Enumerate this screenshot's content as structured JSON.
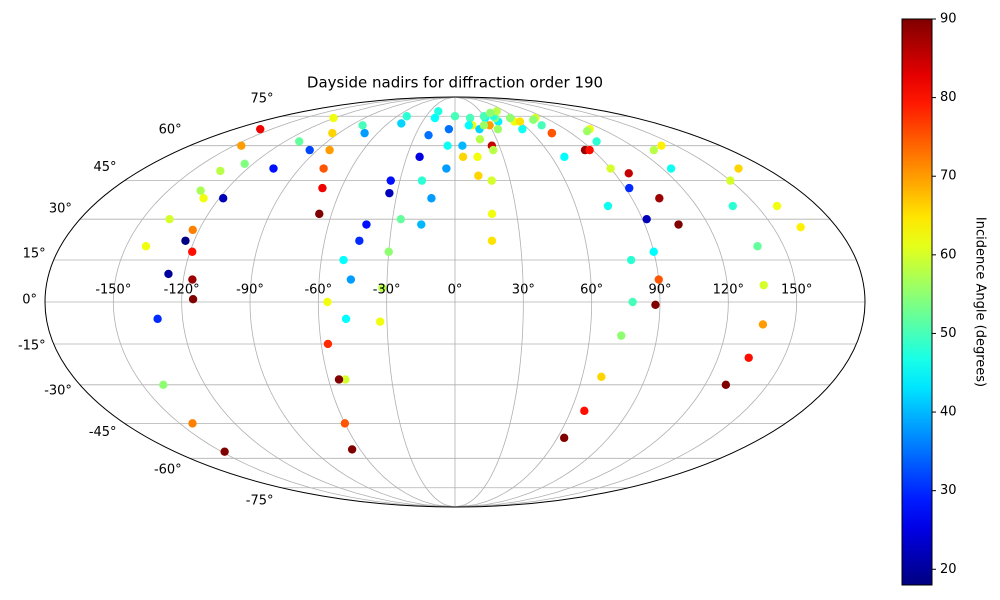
{
  "chart_data": {
    "type": "scatter",
    "projection": "mollweide",
    "title": "Dayside nadirs for diffraction order 190",
    "colormap": "jet",
    "colorbar_label": "Incidence Angle (degrees)",
    "clim": [
      18,
      90
    ],
    "cticks": [
      20,
      30,
      40,
      50,
      60,
      70,
      80,
      90
    ],
    "grid": true,
    "xlim": [
      -180,
      180
    ],
    "ylim": [
      -90,
      90
    ],
    "xticks": [
      {
        "value": -150,
        "label": "-150°"
      },
      {
        "value": -120,
        "label": "-120°"
      },
      {
        "value": -90,
        "label": "-90°"
      },
      {
        "value": -60,
        "label": "-60°"
      },
      {
        "value": -30,
        "label": "-30°"
      },
      {
        "value": 0,
        "label": "0°"
      },
      {
        "value": 30,
        "label": "30°"
      },
      {
        "value": 60,
        "label": "60°"
      },
      {
        "value": 90,
        "label": "90°"
      },
      {
        "value": 120,
        "label": "120°"
      },
      {
        "value": 150,
        "label": "150°"
      }
    ],
    "yticks": [
      {
        "value": -75,
        "label": "-75°"
      },
      {
        "value": -60,
        "label": "-60°"
      },
      {
        "value": -45,
        "label": "-45°"
      },
      {
        "value": -30,
        "label": "-30°"
      },
      {
        "value": -15,
        "label": "-15°"
      },
      {
        "value": 0,
        "label": "0°"
      },
      {
        "value": 15,
        "label": "15°"
      },
      {
        "value": 30,
        "label": "30°"
      },
      {
        "value": 45,
        "label": "45°"
      },
      {
        "value": 60,
        "label": "60°"
      },
      {
        "value": 75,
        "label": "75°"
      }
    ],
    "series": [
      {
        "x": [
          -148,
          -143,
          -140,
          -131,
          -127,
          -124,
          -118,
          -105,
          -95,
          -70,
          -48,
          -20
        ],
        "y": [
          -57,
          -45,
          -30,
          -6,
          10,
          22,
          38,
          50,
          58,
          66,
          71,
          74
        ],
        "c": [
          90,
          72,
          55,
          30,
          20,
          18,
          22,
          28,
          32,
          38,
          42,
          45
        ]
      },
      {
        "x": [
          -141,
          -137,
          -133,
          -125,
          -110,
          -80,
          -50,
          -20
        ],
        "y": [
          20,
          30,
          41,
          52,
          62,
          70,
          75,
          78
        ],
        "c": [
          62,
          60,
          57,
          54,
          52,
          50,
          48,
          47
        ]
      },
      {
        "x": [
          -115,
          -116,
          -119,
          -123,
          -128,
          -134,
          -145,
          -159
        ],
        "y": [
          1,
          8,
          18,
          26,
          38,
          49,
          60,
          68
        ],
        "c": [
          90,
          88,
          80,
          72,
          62,
          58,
          70,
          82
        ]
      },
      {
        "x": [
          -66,
          -70,
          -76,
          -82,
          -95,
          -121
        ],
        "y": [
          32,
          42,
          50,
          58,
          66,
          74
        ],
        "c": [
          90,
          82,
          75,
          70,
          66,
          62
        ]
      },
      {
        "x": [
          -65,
          -60,
          -52,
          -48,
          -46,
          -44,
          -35,
          -20,
          0,
          15,
          5
        ],
        "y": [
          -56,
          -45,
          -28,
          -6,
          8,
          22,
          45,
          65,
          75,
          70,
          55
        ],
        "c": [
          90,
          75,
          60,
          45,
          38,
          30,
          28,
          35,
          50,
          62,
          66
        ]
      },
      {
        "x": [
          -55,
          -57,
          -56,
          -50,
          -42,
          -34,
          -22,
          -5,
          15,
          30,
          25
        ],
        "y": [
          -28,
          -15,
          0,
          15,
          28,
          40,
          55,
          68,
          74,
          70,
          60
        ],
        "c": [
          90,
          78,
          62,
          45,
          28,
          22,
          25,
          35,
          50,
          70,
          85
        ]
      },
      {
        "x": [
          -33,
          -32,
          -30,
          -26,
          -18,
          -5,
          12,
          30
        ],
        "y": [
          -7,
          5,
          18,
          30,
          45,
          60,
          70,
          74
        ],
        "c": [
          62,
          58,
          55,
          52,
          48,
          46,
          45,
          45
        ]
      },
      {
        "x": [
          -16,
          -12,
          -5,
          5,
          20,
          40
        ],
        "y": [
          28,
          38,
          50,
          60,
          68,
          72
        ],
        "c": [
          40,
          38,
          38,
          40,
          42,
          44
        ]
      },
      {
        "x": [
          13,
          14,
          18,
          25,
          40
        ],
        "y": [
          47,
          55,
          63,
          70,
          74
        ],
        "c": [
          66,
          62,
          58,
          56,
          55
        ]
      },
      {
        "x": [
          17,
          18,
          20,
          25,
          35,
          55
        ],
        "y": [
          22,
          32,
          45,
          58,
          68,
          74
        ],
        "c": [
          65,
          62,
          60,
          58,
          56,
          55
        ]
      },
      {
        "x": [
          30,
          55,
          75,
          85,
          90,
          92,
          92,
          90,
          90,
          88
        ],
        "y": [
          75,
          72,
          66,
          58,
          50,
          42,
          30,
          18,
          8,
          -1
        ],
        "c": [
          50,
          62,
          80,
          88,
          60,
          30,
          22,
          45,
          75,
          90
        ]
      },
      {
        "x": [
          64,
          67,
          69,
          74,
          78,
          79,
          76,
          68,
          55,
          40
        ],
        "y": [
          -51,
          -40,
          -27,
          -12,
          0,
          15,
          35,
          55,
          68,
          75
        ],
        "c": [
          90,
          80,
          66,
          55,
          50,
          48,
          46,
          45,
          46,
          48
        ]
      },
      {
        "x": [
          130,
          134,
          136,
          136,
          138,
          138,
          125,
          100,
          75,
          55
        ],
        "y": [
          -30,
          -20,
          -8,
          6,
          20,
          35,
          50,
          62,
          70,
          74
        ],
        "c": [
          90,
          80,
          70,
          60,
          52,
          48,
          46,
          48,
          50,
          55
        ]
      },
      {
        "x": [
          60,
          75,
          88,
          98,
          104,
          106
        ],
        "y": [
          72,
          66,
          58,
          48,
          38,
          28
        ],
        "c": [
          65,
          75,
          80,
          85,
          88,
          90
        ]
      },
      {
        "x": [
          50,
          80,
          110,
          140,
          164
        ],
        "y": [
          78,
          74,
          68,
          60,
          50
        ],
        "c": [
          58,
          60,
          62,
          64,
          66
        ]
      },
      {
        "x": [
          40,
          75,
          105,
          130,
          150,
          160,
          163
        ],
        "y": [
          77,
          73,
          67,
          58,
          45,
          35,
          27
        ],
        "c": [
          55,
          55,
          56,
          58,
          60,
          62,
          64
        ]
      }
    ]
  }
}
